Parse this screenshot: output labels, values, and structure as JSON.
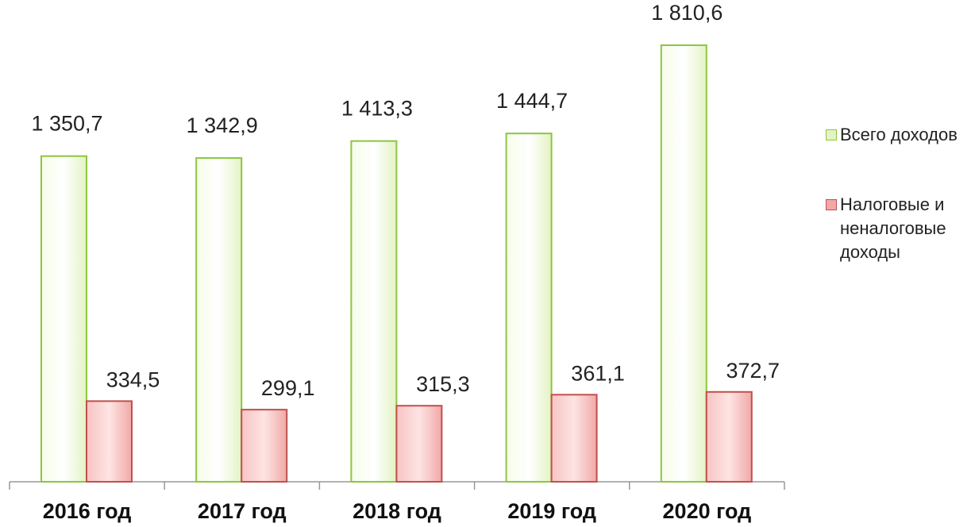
{
  "chart_data": {
    "type": "bar",
    "categories": [
      "2016 год",
      "2017 год",
      "2018 год",
      "2019 год",
      "2020 год"
    ],
    "series": [
      {
        "name": "Всего доходов",
        "color": "#8cc63f",
        "values": [
          1350.7,
          1342.9,
          1413.3,
          1444.7,
          1810.6
        ],
        "value_labels": [
          "1 350,7",
          "1 342,9",
          "1 413,3",
          "1 444,7",
          "1 810,6"
        ]
      },
      {
        "name": "Налоговые и неналоговые доходы",
        "color": "#c0504d",
        "values": [
          334.5,
          299.1,
          315.3,
          361.1,
          372.7
        ],
        "value_labels": [
          "334,5",
          "299,1",
          "315,3",
          "361,1",
          "372,7"
        ]
      }
    ],
    "legend": "right"
  }
}
